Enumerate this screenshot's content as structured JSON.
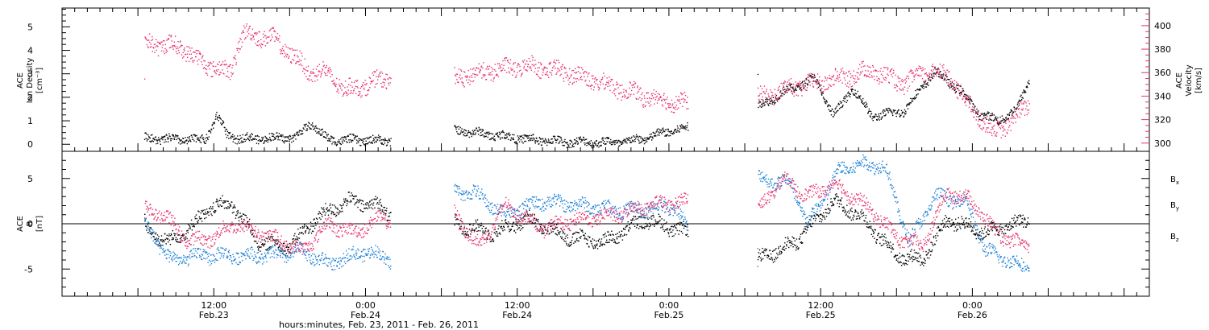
{
  "colors": {
    "black": "#000000",
    "blue": "#1a7fd6",
    "pink": "#e8336b"
  },
  "chart_data": [
    {
      "type": "scatter",
      "panel": "ion-density-velocity",
      "ylabel_lines": [
        "ACE",
        "Ion Density",
        "[cm⁻³]"
      ],
      "y2label_lines": [
        "ACE",
        "Velocity",
        "[km/s]"
      ],
      "ylim": [
        -0.3,
        5.8
      ],
      "y2lim": [
        293,
        415
      ],
      "yticks": [
        0,
        1,
        2,
        3,
        4,
        5
      ],
      "y2ticks": [
        300,
        320,
        340,
        360,
        380,
        400
      ],
      "y2ticks_minor": [
        305,
        310,
        315,
        325,
        330,
        335,
        345,
        350,
        355,
        365,
        370,
        375,
        385,
        390,
        395,
        405,
        410
      ],
      "series": [
        {
          "color": "#000000",
          "axis": "left",
          "segments": [
            {
              "x": [
                6.5,
                9.0,
                11.3,
                12.2,
                12.7,
                13.0,
                13.7,
                15.5,
                18.5,
                19.6,
                21.0,
                26.0
              ],
              "y": [
                0.25,
                0.2,
                0.2,
                1.2,
                0.8,
                0.4,
                0.25,
                0.25,
                0.3,
                0.9,
                0.2,
                0.15
              ]
            },
            {
              "x": [
                31.0,
                34.0,
                37.0,
                40.0,
                43.0,
                44.5,
                46.5,
                47.5,
                49.5
              ],
              "y": [
                0.6,
                0.4,
                0.2,
                0.1,
                0.08,
                0.1,
                0.3,
                0.5,
                0.7
              ]
            },
            {
              "x": [
                55.0,
                57.0,
                59.5,
                61.0,
                62.5,
                64.0,
                66.5,
                69.0,
                71.0,
                72.5,
                74.0,
                75.5,
                76.5
              ],
              "y": [
                1.6,
                2.2,
                2.8,
                1.2,
                2.4,
                1.2,
                1.4,
                3.1,
                2.3,
                1.3,
                1.0,
                1.5,
                2.8
              ]
            }
          ]
        },
        {
          "color": "#e8336b",
          "axis": "right",
          "segments": [
            {
              "x": [
                6.5,
                9.5,
                10.5,
                12.5,
                13.2,
                14.3,
                16.5,
                18.5,
                19.5,
                20.5,
                22.5,
                26.0
              ],
              "y": [
                385,
                382,
                372,
                362,
                360,
                393,
                390,
                372,
                360,
                362,
                345,
                356
              ]
            },
            {
              "x": [
                31.0,
                34.0,
                37.0,
                40.0,
                43.0,
                46.0,
                49.5
              ],
              "y": [
                355,
                362,
                366,
                360,
                350,
                340,
                333
              ]
            },
            {
              "x": [
                55.0,
                58.0,
                61.0,
                64.0,
                66.5,
                68.5,
                70.0,
                71.5,
                73.5,
                75.0,
                76.5
              ],
              "y": [
                338,
                348,
                354,
                362,
                350,
                362,
                358,
                335,
                310,
                317,
                335
              ]
            }
          ]
        }
      ]
    },
    {
      "type": "scatter",
      "panel": "magnetic-field",
      "ylabel_lines": [
        "ACE",
        "B",
        "[nT]"
      ],
      "ylim": [
        -8.0,
        8.0
      ],
      "yticks": [
        -5,
        0,
        5
      ],
      "series": [
        {
          "name": "Bx",
          "color": "#000000",
          "segments": [
            {
              "x": [
                6.5,
                8.5,
                10.0,
                12.0,
                13.5,
                15.5,
                18.0,
                20.0,
                22.5,
                25.0,
                26.0
              ],
              "y": [
                -0.5,
                -2.0,
                -0.5,
                2.0,
                2.0,
                -2.0,
                -2.5,
                0.5,
                2.5,
                2.0,
                1.0
              ]
            },
            {
              "x": [
                31.0,
                34.0,
                37.0,
                40.0,
                43.0,
                46.0,
                49.5
              ],
              "y": [
                0.0,
                -1.0,
                0.5,
                -1.5,
                -2.0,
                0.5,
                -1.0
              ]
            },
            {
              "x": [
                55.0,
                58.0,
                61.0,
                63.0,
                66.0,
                68.0,
                70.0,
                73.0,
                76.5
              ],
              "y": [
                -4.0,
                -2.0,
                2.5,
                1.0,
                -3.5,
                -4.0,
                0.5,
                -1.0,
                0.5
              ]
            }
          ]
        },
        {
          "name": "By",
          "color": "#1a7fd6",
          "segments": [
            {
              "x": [
                6.5,
                8.5,
                11.0,
                13.5,
                15.0,
                17.0,
                19.0,
                21.0,
                24.0,
                26.0
              ],
              "y": [
                0.0,
                -4.0,
                -3.5,
                -3.5,
                -3.5,
                -3.5,
                -3.0,
                -4.5,
                -3.0,
                -4.0
              ]
            },
            {
              "x": [
                31.0,
                32.5,
                35.0,
                38.0,
                41.0,
                44.0,
                46.0,
                48.5,
                49.5
              ],
              "y": [
                3.5,
                3.5,
                1.0,
                2.5,
                2.0,
                1.5,
                1.5,
                2.0,
                -1.0
              ]
            },
            {
              "x": [
                55.0,
                57.5,
                59.0,
                61.5,
                63.0,
                65.0,
                67.0,
                69.0,
                71.5,
                73.0,
                76.5
              ],
              "y": [
                5.0,
                4.5,
                0.0,
                6.0,
                6.5,
                6.5,
                -2.0,
                3.0,
                2.5,
                -3.0,
                -5.0
              ]
            }
          ]
        },
        {
          "name": "Bz",
          "color": "#e8336b",
          "segments": [
            {
              "x": [
                6.5,
                8.0,
                10.0,
                12.0,
                13.5,
                15.5,
                17.5,
                19.0,
                21.0,
                23.0,
                25.0,
                26.0
              ],
              "y": [
                1.5,
                1.0,
                -2.0,
                -1.5,
                0.0,
                -1.0,
                -2.0,
                -3.0,
                0.0,
                -1.0,
                0.5,
                0.5
              ]
            },
            {
              "x": [
                31.0,
                33.0,
                35.0,
                38.0,
                41.0,
                44.0,
                46.0,
                49.5
              ],
              "y": [
                1.0,
                -2.5,
                2.0,
                -0.5,
                0.5,
                1.0,
                2.0,
                2.5
              ]
            },
            {
              "x": [
                55.0,
                57.0,
                59.0,
                61.0,
                64.0,
                66.0,
                68.0,
                70.0,
                72.0,
                73.5,
                75.0,
                76.5
              ],
              "y": [
                1.5,
                5.0,
                3.0,
                4.5,
                1.5,
                -1.5,
                -2.5,
                3.5,
                2.5,
                -0.5,
                -2.0,
                -2.5
              ]
            }
          ]
        }
      ],
      "legend": {
        "placement": "right",
        "entries": [
          {
            "base": "B",
            "sub": "x",
            "color": "#000000"
          },
          {
            "base": "B",
            "sub": "y",
            "color": "#1a7fd6"
          },
          {
            "base": "B",
            "sub": "z",
            "color": "#e8336b"
          }
        ]
      }
    }
  ],
  "xaxis": {
    "xlim": [
      0,
      86
    ],
    "xlabel": "hours:minutes, Feb. 23, 2011 - Feb. 26, 2011",
    "major_ticks": [
      {
        "x": 12,
        "time": "12:00",
        "date": "Feb.23"
      },
      {
        "x": 24,
        "time": "0:00",
        "date": "Feb.24"
      },
      {
        "x": 36,
        "time": "12:00",
        "date": "Feb.24"
      },
      {
        "x": 48,
        "time": "0:00",
        "date": "Feb.25"
      },
      {
        "x": 60,
        "time": "12:00",
        "date": "Feb.25"
      },
      {
        "x": 72,
        "time": "0:00",
        "date": "Feb.26"
      }
    ],
    "minor_step": 1
  }
}
